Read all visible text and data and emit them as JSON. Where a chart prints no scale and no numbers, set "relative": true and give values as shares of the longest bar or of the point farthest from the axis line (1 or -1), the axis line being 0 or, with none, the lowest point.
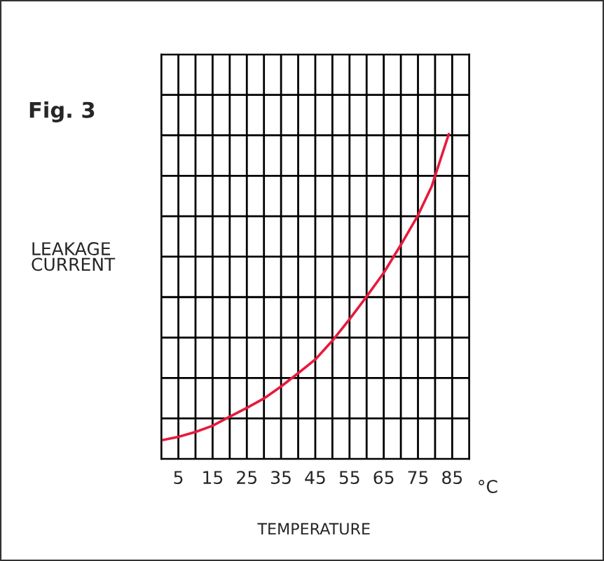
{
  "chart_data": {
    "type": "line",
    "title": "Fig. 3",
    "xlabel": "TEMPERATURE",
    "ylabel": "LEAKAGE\nCURRENT",
    "relative": true,
    "x": [
      0,
      5,
      10,
      15,
      20,
      25,
      30,
      35,
      40,
      45,
      50,
      55,
      60,
      65,
      70,
      75,
      79,
      84
    ],
    "series": [
      {
        "color": "#e8193c",
        "values": [
          0.057,
          0.068,
          0.083,
          0.102,
          0.13,
          0.157,
          0.186,
          0.223,
          0.264,
          0.306,
          0.364,
          0.43,
          0.5,
          0.573,
          0.659,
          0.75,
          0.839,
          1
        ]
      }
    ],
    "xlim": [
      0,
      90
    ],
    "xticks": [
      {
        "value": 0,
        "label": null
      },
      5,
      {
        "value": 10,
        "label": null
      },
      15,
      {
        "value": 20,
        "label": null
      },
      25,
      {
        "value": 30,
        "label": null
      },
      35,
      {
        "value": 40,
        "label": null
      },
      45,
      {
        "value": 50,
        "label": null
      },
      55,
      {
        "value": 60,
        "label": null
      },
      65,
      {
        "value": 70,
        "label": null
      },
      75,
      {
        "value": 80,
        "label": null
      },
      85,
      {
        "value": 90,
        "label": null
      }
    ],
    "annotations": [
      "°C"
    ],
    "grid": true,
    "marker": "none",
    "line_style": "solid",
    "legend": false
  }
}
